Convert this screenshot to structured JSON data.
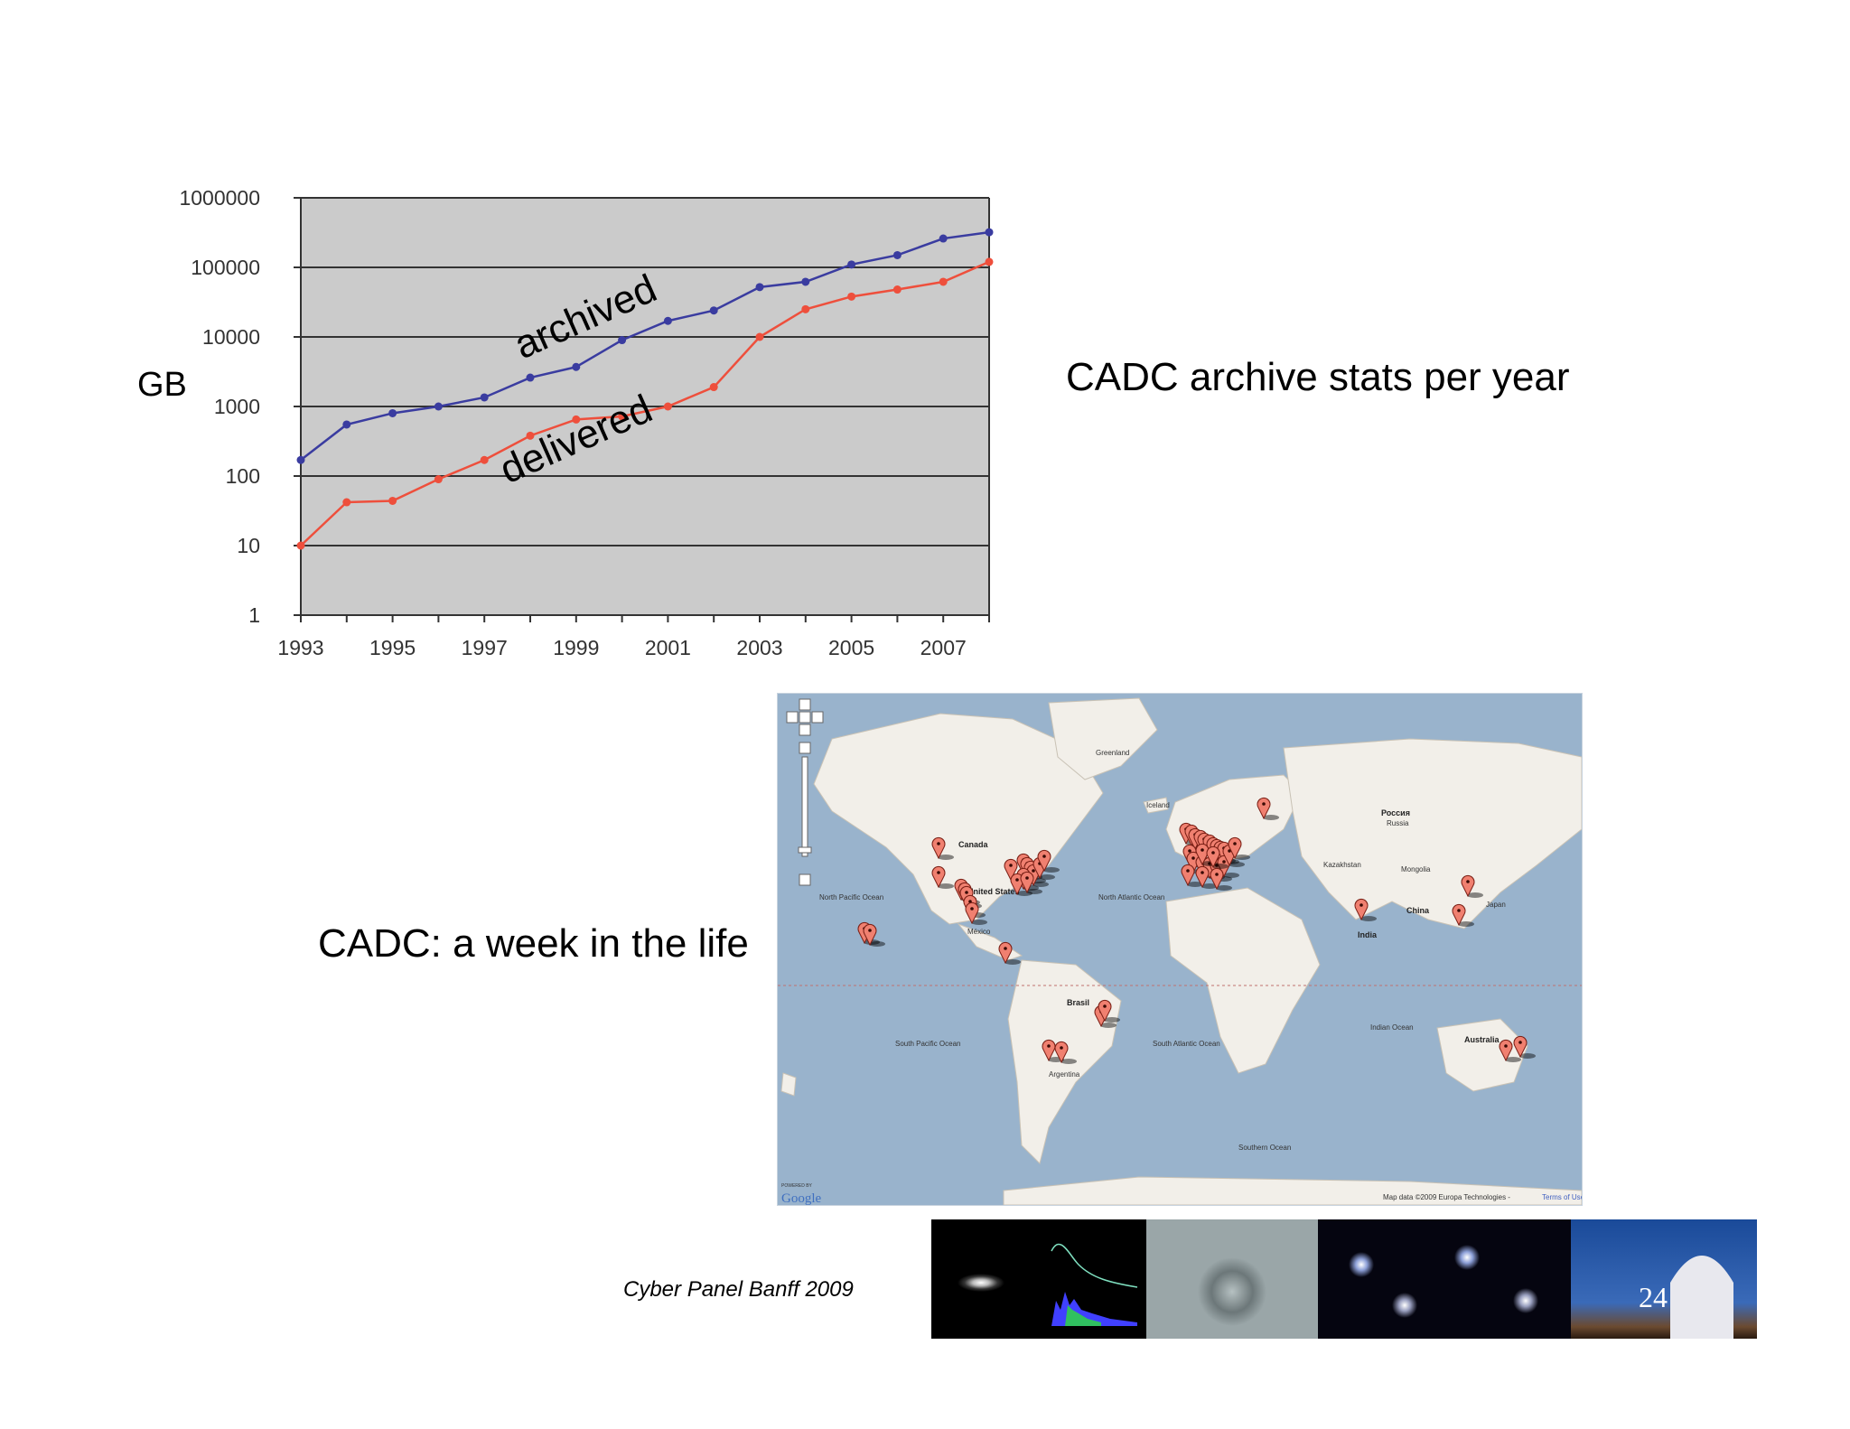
{
  "slide": {
    "chart_title": "CADC archive stats per year",
    "map_title": "CADC: a week in the life",
    "footer": "Cyber Panel Banff 2009",
    "page_number": "24"
  },
  "map": {
    "labels": {
      "canada": "Canada",
      "united_states": "United States",
      "mexico": "México",
      "greenland": "Greenland",
      "iceland": "Iceland",
      "russia": "Россия",
      "russia_en": "Russia",
      "kazakhstan": "Kazakhstan",
      "mongolia": "Mongolia",
      "china": "China",
      "japan": "Japan",
      "india": "India",
      "brasil": "Brasil",
      "argentina": "Argentina",
      "australia": "Australia",
      "north_pacific": "North Pacific Ocean",
      "north_atlantic": "North Atlantic Ocean",
      "south_pacific": "South Pacific Ocean",
      "south_atlantic": "South Atlantic Ocean",
      "indian_ocean": "Indian Ocean",
      "southern_ocean": "Southern Ocean",
      "attribution": "Map data ©2009 Europa Technologies -",
      "terms": "Terms of Use",
      "powered_by": "POWERED BY",
      "google": "Google"
    },
    "colors": {
      "water": "#99b3cc",
      "land": "#f2efe9",
      "marker": "#f08070"
    }
  },
  "chart_data": {
    "type": "line",
    "ylabel": "GB",
    "yscale": "log",
    "ylim": [
      1,
      1000000
    ],
    "yticks": [
      "1",
      "10",
      "100",
      "1000",
      "10000",
      "100000",
      "1000000"
    ],
    "x": [
      1993,
      1994,
      1995,
      1996,
      1997,
      1998,
      1999,
      2000,
      2001,
      2002,
      2003,
      2004,
      2005,
      2006,
      2007,
      2008
    ],
    "xticks": [
      "1993",
      "1995",
      "1997",
      "1999",
      "2001",
      "2003",
      "2005",
      "2007"
    ],
    "xlim": [
      1993,
      2008
    ],
    "grid": true,
    "background": "#cbcbcb",
    "series": [
      {
        "name": "archived",
        "color": "#3a3ca0",
        "values": [
          170,
          550,
          800,
          1000,
          1350,
          2600,
          3700,
          9000,
          17000,
          24000,
          52000,
          62000,
          110000,
          150000,
          260000,
          320000
        ]
      },
      {
        "name": "delivered",
        "color": "#ee4f3c",
        "values": [
          10,
          42,
          44,
          90,
          170,
          380,
          650,
          720,
          1000,
          1900,
          10000,
          25000,
          38000,
          48000,
          62000,
          120000
        ]
      }
    ]
  }
}
